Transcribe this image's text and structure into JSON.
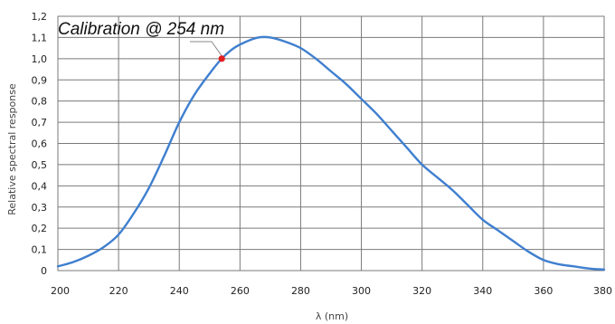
{
  "chart_data": {
    "type": "line",
    "xlabel": "λ (nm)",
    "ylabel": "Relative spectral response",
    "xlim": [
      200,
      380
    ],
    "ylim": [
      0,
      1.2
    ],
    "x_ticks": [
      "200",
      "220",
      "240",
      "260",
      "280",
      "300",
      "320",
      "340",
      "360",
      "380"
    ],
    "y_ticks": [
      "0",
      "0,1",
      "0,2",
      "0,3",
      "0,4",
      "0,5",
      "0,6",
      "0,7",
      "0,8",
      "0,9",
      "1,0",
      "1,1",
      "1,2"
    ],
    "grid": true,
    "line_color": "#3f7fcf",
    "marker_color": "#e02020",
    "series": [
      {
        "x": [
          200,
          205,
          210,
          215,
          220,
          225,
          230,
          235,
          240,
          245,
          250,
          254,
          258,
          262,
          266,
          270,
          275,
          280,
          285,
          290,
          295,
          300,
          305,
          310,
          315,
          320,
          325,
          330,
          335,
          340,
          345,
          350,
          355,
          360,
          365,
          370,
          375,
          380
        ],
        "y": [
          0.02,
          0.04,
          0.07,
          0.11,
          0.17,
          0.27,
          0.39,
          0.54,
          0.7,
          0.83,
          0.93,
          1.0,
          1.05,
          1.08,
          1.1,
          1.1,
          1.08,
          1.05,
          1.0,
          0.94,
          0.88,
          0.81,
          0.74,
          0.66,
          0.58,
          0.5,
          0.44,
          0.38,
          0.31,
          0.24,
          0.19,
          0.14,
          0.09,
          0.05,
          0.03,
          0.02,
          0.01,
          0.005
        ]
      }
    ],
    "annotation": {
      "text": "Calibration @ 254 nm",
      "x": 254,
      "y": 1.0
    }
  }
}
